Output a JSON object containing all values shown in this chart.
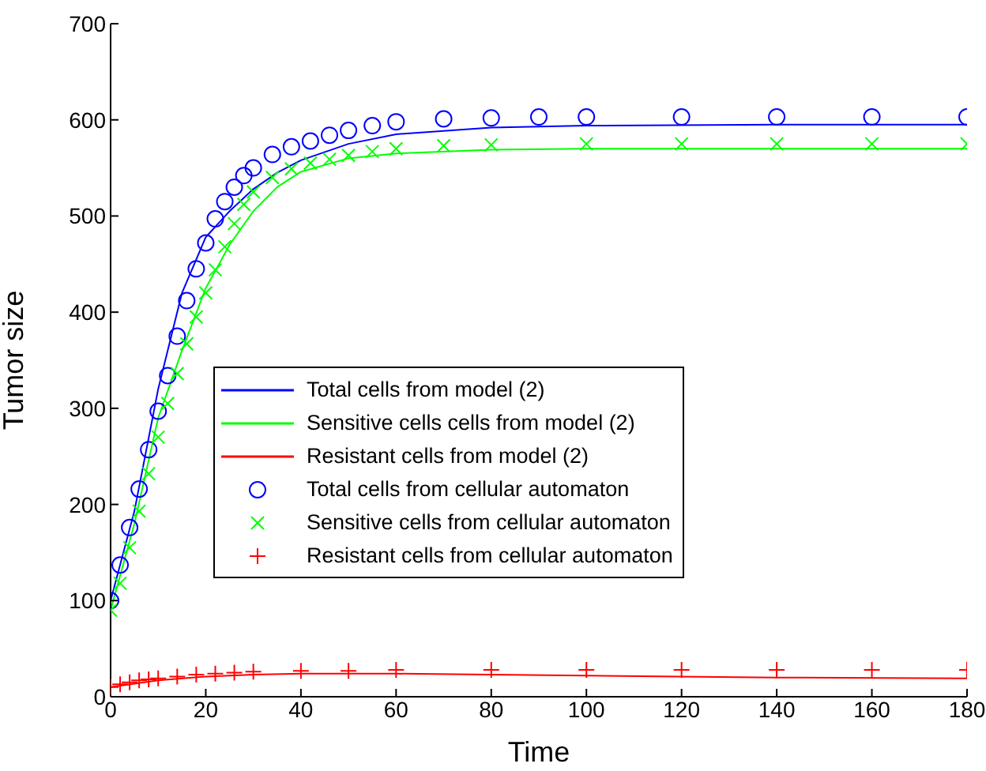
{
  "chart_data": {
    "type": "line",
    "xlabel": "Time",
    "ylabel": "Tumor size",
    "xlim": [
      0,
      180
    ],
    "xticks": [
      0,
      20,
      40,
      60,
      80,
      100,
      120,
      140,
      160,
      180
    ],
    "ylim": [
      0,
      700
    ],
    "yticks": [
      0,
      100,
      200,
      300,
      400,
      500,
      600,
      700
    ],
    "grid": false,
    "legend": "center",
    "series": [
      {
        "name": "Total cells from model (2)",
        "color": "#0000ff",
        "x": [
          0,
          5,
          10,
          15,
          20,
          25,
          30,
          35,
          40,
          50,
          60,
          80,
          100,
          140,
          180
        ],
        "values": [
          100,
          193,
          320,
          420,
          478,
          505,
          528,
          545,
          558,
          575,
          585,
          592,
          594,
          595,
          595
        ]
      },
      {
        "name": "Sensitive cells cells from model (2)",
        "color": "#00ff00",
        "x": [
          0,
          5,
          10,
          15,
          20,
          25,
          30,
          35,
          40,
          50,
          60,
          80,
          100,
          140,
          180
        ],
        "values": [
          90,
          180,
          290,
          360,
          425,
          470,
          505,
          530,
          546,
          560,
          565,
          569,
          570,
          570,
          570
        ]
      },
      {
        "name": "Resistant cells from model (2)",
        "color": "#ff0000",
        "x": [
          0,
          10,
          20,
          30,
          40,
          60,
          80,
          100,
          140,
          180
        ],
        "values": [
          10,
          17,
          21,
          23,
          24,
          24,
          23,
          22,
          20,
          19
        ]
      },
      {
        "name": "Total cells from cellular automaton",
        "type": "scatter",
        "marker": "circle",
        "color": "#0000ff",
        "x": [
          0,
          2,
          4,
          6,
          8,
          10,
          12,
          14,
          16,
          18,
          20,
          22,
          24,
          26,
          28,
          30,
          34,
          38,
          42,
          46,
          50,
          55,
          60,
          70,
          80,
          90,
          100,
          120,
          140,
          160,
          180
        ],
        "values": [
          100,
          137,
          176,
          216,
          257,
          297,
          334,
          375,
          412,
          445,
          472,
          497,
          515,
          530,
          542,
          550,
          564,
          572,
          578,
          584,
          589,
          594,
          598,
          601,
          602,
          603,
          603,
          603,
          603,
          603,
          603
        ]
      },
      {
        "name": "Sensitive cells from cellular automaton",
        "type": "scatter",
        "marker": "cross",
        "color": "#00ff00",
        "x": [
          0,
          2,
          4,
          6,
          8,
          10,
          12,
          14,
          16,
          18,
          20,
          22,
          24,
          26,
          28,
          30,
          34,
          38,
          42,
          46,
          50,
          55,
          60,
          70,
          80,
          100,
          120,
          140,
          160,
          180
        ],
        "values": [
          90,
          118,
          155,
          193,
          232,
          270,
          305,
          336,
          367,
          395,
          420,
          444,
          468,
          492,
          512,
          525,
          540,
          549,
          555,
          559,
          563,
          567,
          570,
          573,
          574,
          575,
          575,
          575,
          575,
          575
        ]
      },
      {
        "name": "Resistant cells from cellular automaton",
        "type": "scatter",
        "marker": "plus",
        "color": "#ff0000",
        "x": [
          0,
          2,
          4,
          6,
          8,
          10,
          14,
          18,
          22,
          26,
          30,
          40,
          50,
          60,
          80,
          100,
          120,
          140,
          160,
          180
        ],
        "values": [
          10,
          13,
          15,
          17,
          18,
          19,
          21,
          23,
          24,
          25,
          26,
          27,
          27,
          28,
          28,
          28,
          28,
          28,
          28,
          28
        ]
      }
    ]
  }
}
